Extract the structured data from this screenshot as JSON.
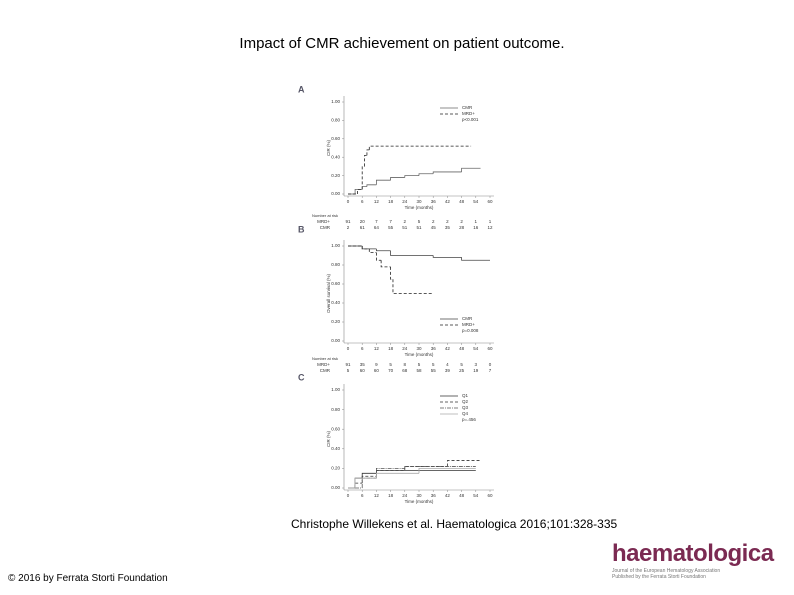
{
  "title": "Impact of CMR achievement on patient outcome.",
  "citation": "Christophe Willekens et al. Haematologica 2016;101:328-335",
  "copyright": "© 2016 by Ferrata Storti Foundation",
  "logo": {
    "name": "haematologica",
    "line1": "Journal of the European Hematology Association",
    "line2": "Published by the Ferrata Storti Foundation"
  },
  "chart_data": [
    {
      "type": "step",
      "panel": "A",
      "ylabel": "CIR (%)",
      "xlabel": "Time (months)",
      "stat": "p<0.001",
      "legend": "upper right",
      "xlim": [
        0,
        60
      ],
      "xticks": [
        0,
        6,
        12,
        18,
        24,
        30,
        36,
        42,
        48,
        54,
        60
      ],
      "ylim": [
        0,
        1
      ],
      "yticks": [
        {
          "value": 0,
          "label": "0.00"
        },
        {
          "value": 0.2,
          "label": "0.20"
        },
        {
          "value": 0.4,
          "label": "0.40"
        },
        {
          "value": 0.6,
          "label": "0.60"
        },
        {
          "value": 0.8,
          "label": "0.80"
        },
        {
          "value": 1,
          "label": "1.00"
        }
      ],
      "series": [
        {
          "name": "CMR",
          "color": "#666666",
          "dash": "",
          "x": [
            0,
            3,
            6,
            8,
            12,
            18,
            24,
            30,
            36,
            48,
            56
          ],
          "values": [
            0,
            0.05,
            0.08,
            0.1,
            0.15,
            0.18,
            0.2,
            0.22,
            0.24,
            0.28,
            0.28
          ]
        },
        {
          "name": "MRD+",
          "color": "#222222",
          "dash": "3,2",
          "x": [
            0,
            4,
            6,
            7,
            8,
            9,
            52
          ],
          "values": [
            0,
            0.05,
            0.3,
            0.42,
            0.48,
            0.52,
            0.52
          ]
        }
      ],
      "risk_table": {
        "label": "Number at risk",
        "rows": [
          {
            "name": "MRD+",
            "values": [
              91,
              20,
              7,
              7,
              2,
              5,
              2,
              2,
              2,
              1,
              1
            ]
          },
          {
            "name": "CMR",
            "values": [
              2,
              61,
              64,
              55,
              51,
              51,
              45,
              35,
              28,
              16,
              12
            ]
          }
        ]
      }
    },
    {
      "type": "step",
      "panel": "B",
      "ylabel": "Overall survival (%)",
      "xlabel": "Time (months)",
      "stat": "p=0.008",
      "legend": "lower right",
      "xlim": [
        0,
        60
      ],
      "xticks": [
        0,
        6,
        12,
        18,
        24,
        30,
        36,
        42,
        48,
        54,
        60
      ],
      "ylim": [
        0,
        1
      ],
      "yticks": [
        {
          "value": 0,
          "label": "0.00"
        },
        {
          "value": 0.2,
          "label": "0.20"
        },
        {
          "value": 0.4,
          "label": "0.40"
        },
        {
          "value": 0.6,
          "label": "0.60"
        },
        {
          "value": 0.8,
          "label": "0.80"
        },
        {
          "value": 1,
          "label": "1.00"
        }
      ],
      "series": [
        {
          "name": "CMR",
          "color": "#444444",
          "dash": "",
          "x": [
            0,
            6,
            12,
            18,
            36,
            48,
            60
          ],
          "values": [
            1,
            0.97,
            0.95,
            0.9,
            0.88,
            0.85,
            0.85
          ]
        },
        {
          "name": "MRD+",
          "color": "#222222",
          "dash": "3,2",
          "x": [
            0,
            6,
            9,
            12,
            14,
            18,
            19,
            36
          ],
          "values": [
            1,
            0.97,
            0.93,
            0.85,
            0.78,
            0.65,
            0.5,
            0.5
          ]
        }
      ],
      "risk_table": {
        "label": "Number at risk",
        "rows": [
          {
            "name": "MRD+",
            "values": [
              91,
              35,
              9,
              5,
              8,
              5,
              5,
              4,
              5,
              3,
              0
            ]
          },
          {
            "name": "CMR",
            "values": [
              5,
              60,
              60,
              70,
              68,
              58,
              55,
              39,
              25,
              19,
              7
            ]
          }
        ]
      }
    },
    {
      "type": "step",
      "panel": "C",
      "ylabel": "CIR (%)",
      "xlabel": "Time (months)",
      "stat": "p=.456",
      "legend": "upper right",
      "xlim": [
        0,
        60
      ],
      "xticks": [
        0,
        6,
        12,
        18,
        24,
        30,
        36,
        42,
        48,
        54,
        60
      ],
      "ylim": [
        0,
        1
      ],
      "yticks": [
        {
          "value": 0,
          "label": "0.00"
        },
        {
          "value": 0.2,
          "label": "0.20"
        },
        {
          "value": 0.4,
          "label": "0.40"
        },
        {
          "value": 0.6,
          "label": "0.60"
        },
        {
          "value": 0.8,
          "label": "0.80"
        },
        {
          "value": 1,
          "label": "1.00"
        }
      ],
      "series": [
        {
          "name": "Q1",
          "color": "#333333",
          "dash": "",
          "x": [
            0,
            3,
            6,
            12,
            54
          ],
          "values": [
            0,
            0.1,
            0.15,
            0.18,
            0.18
          ]
        },
        {
          "name": "Q2",
          "color": "#333333",
          "dash": "3,2",
          "x": [
            0,
            3,
            6,
            12,
            24,
            42,
            56
          ],
          "values": [
            0,
            0.05,
            0.12,
            0.18,
            0.22,
            0.28,
            0.28
          ]
        },
        {
          "name": "Q3",
          "color": "#555555",
          "dash": "4,1,1,1",
          "x": [
            0,
            6,
            12,
            24,
            54
          ],
          "values": [
            0,
            0.1,
            0.2,
            0.22,
            0.22
          ]
        },
        {
          "name": "Q4",
          "color": "#aaaaaa",
          "dash": "",
          "x": [
            0,
            3,
            12,
            30,
            54
          ],
          "values": [
            0,
            0.1,
            0.15,
            0.2,
            0.2
          ]
        }
      ]
    }
  ]
}
